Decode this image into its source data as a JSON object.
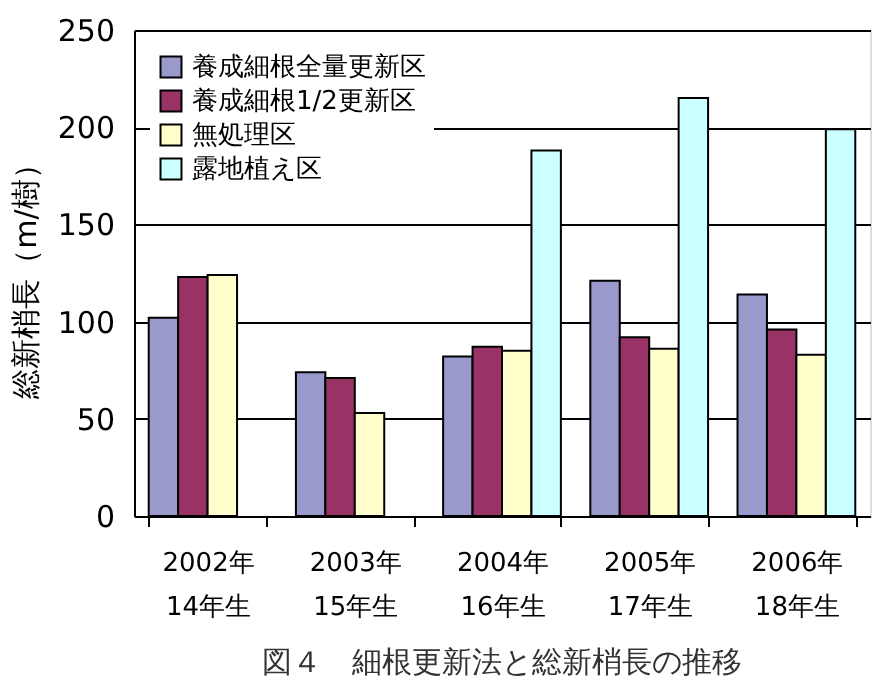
{
  "chart_data": {
    "type": "bar",
    "ylabel": "総新梢長（m/樹）",
    "categories": [
      "2002年\n14年生",
      "2003年\n15年生",
      "2004年\n16年生",
      "2005年\n17年生",
      "2006年\n18年生"
    ],
    "series": [
      {
        "name": "養成細根全量更新区",
        "color": "#9999cc",
        "values": [
          102,
          74,
          82,
          121,
          114
        ]
      },
      {
        "name": "養成細根1/2更新区",
        "color": "#993366",
        "values": [
          123,
          71,
          87,
          92,
          96
        ]
      },
      {
        "name": "無処理区",
        "color": "#ffffcc",
        "values": [
          124,
          53,
          85,
          86,
          83
        ]
      },
      {
        "name": "露地植え区",
        "color": "#ccffff",
        "values": [
          null,
          null,
          188,
          215,
          199
        ]
      }
    ],
    "ylim": [
      0,
      250
    ],
    "yticks": [
      0,
      50,
      100,
      150,
      200,
      250
    ],
    "grid": "y",
    "legend": "top left",
    "annotations": [
      "図４　細根更新法と総新梢長の推移"
    ]
  }
}
